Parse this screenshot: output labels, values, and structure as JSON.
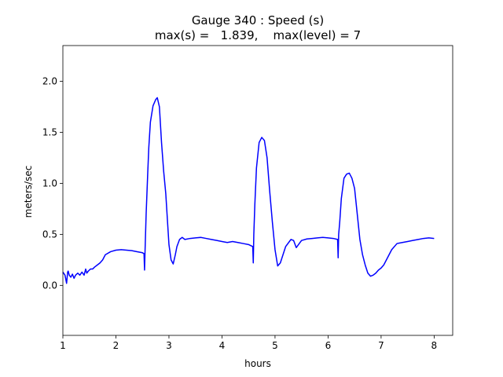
{
  "chart_data": {
    "type": "line",
    "title": "Gauge 340 : Speed (s)",
    "subtitle": "max(s) =   1.839,    max(level) = 7",
    "xlabel": "hours",
    "ylabel": "meters/sec",
    "xlim": [
      1.0,
      8.35
    ],
    "ylim": [
      -0.49,
      2.35
    ],
    "xticks": [
      1,
      2,
      3,
      4,
      5,
      6,
      7,
      8
    ],
    "xtick_labels": [
      "1",
      "2",
      "3",
      "4",
      "5",
      "6",
      "7",
      "8"
    ],
    "yticks": [
      0.0,
      0.5,
      1.0,
      1.5,
      2.0
    ],
    "ytick_labels": [
      "0.0",
      "0.5",
      "1.0",
      "1.5",
      "2.0"
    ],
    "grid": false,
    "series": [
      {
        "color": "#0000ff",
        "x": [
          1.0,
          1.04,
          1.07,
          1.09,
          1.1,
          1.12,
          1.15,
          1.18,
          1.21,
          1.24,
          1.28,
          1.32,
          1.36,
          1.4,
          1.43,
          1.45,
          1.48,
          1.52,
          1.56,
          1.6,
          1.65,
          1.7,
          1.75,
          1.8,
          1.9,
          2.0,
          2.1,
          2.2,
          2.3,
          2.4,
          2.5,
          2.53,
          2.54,
          2.55,
          2.57,
          2.6,
          2.62,
          2.65,
          2.7,
          2.75,
          2.78,
          2.82,
          2.86,
          2.9,
          2.94,
          2.97,
          3.0,
          3.04,
          3.08,
          3.12,
          3.15,
          3.2,
          3.25,
          3.3,
          3.4,
          3.5,
          3.6,
          3.7,
          3.8,
          3.9,
          4.0,
          4.1,
          4.2,
          4.3,
          4.4,
          4.5,
          4.58,
          4.59,
          4.6,
          4.62,
          4.65,
          4.7,
          4.75,
          4.8,
          4.85,
          4.9,
          4.95,
          5.0,
          5.05,
          5.1,
          5.2,
          5.3,
          5.35,
          5.4,
          5.5,
          5.6,
          5.7,
          5.8,
          5.9,
          6.0,
          6.1,
          6.18,
          6.19,
          6.2,
          6.22,
          6.25,
          6.3,
          6.35,
          6.4,
          6.45,
          6.5,
          6.55,
          6.6,
          6.65,
          6.7,
          6.75,
          6.8,
          6.85,
          6.9,
          6.95,
          7.0,
          7.05,
          7.1,
          7.2,
          7.3,
          7.4,
          7.5,
          7.6,
          7.7,
          7.8,
          7.9,
          8.0
        ],
        "y": [
          0.13,
          0.1,
          0.02,
          0.13,
          0.14,
          0.1,
          0.08,
          0.11,
          0.07,
          0.1,
          0.12,
          0.1,
          0.13,
          0.1,
          0.16,
          0.12,
          0.14,
          0.16,
          0.16,
          0.18,
          0.2,
          0.22,
          0.25,
          0.3,
          0.33,
          0.345,
          0.35,
          0.345,
          0.34,
          0.33,
          0.32,
          0.31,
          0.15,
          0.35,
          0.7,
          1.1,
          1.35,
          1.6,
          1.76,
          1.82,
          1.839,
          1.75,
          1.4,
          1.12,
          0.9,
          0.65,
          0.4,
          0.25,
          0.21,
          0.3,
          0.38,
          0.45,
          0.47,
          0.45,
          0.46,
          0.465,
          0.47,
          0.46,
          0.45,
          0.44,
          0.43,
          0.42,
          0.43,
          0.42,
          0.41,
          0.4,
          0.38,
          0.22,
          0.5,
          0.8,
          1.15,
          1.4,
          1.45,
          1.42,
          1.25,
          0.92,
          0.62,
          0.35,
          0.19,
          0.22,
          0.38,
          0.45,
          0.44,
          0.37,
          0.44,
          0.455,
          0.46,
          0.465,
          0.47,
          0.465,
          0.46,
          0.45,
          0.27,
          0.5,
          0.62,
          0.85,
          1.05,
          1.09,
          1.1,
          1.05,
          0.95,
          0.7,
          0.45,
          0.3,
          0.2,
          0.12,
          0.09,
          0.1,
          0.12,
          0.15,
          0.17,
          0.2,
          0.25,
          0.35,
          0.41,
          0.42,
          0.43,
          0.44,
          0.45,
          0.46,
          0.465,
          0.46
        ]
      }
    ]
  }
}
